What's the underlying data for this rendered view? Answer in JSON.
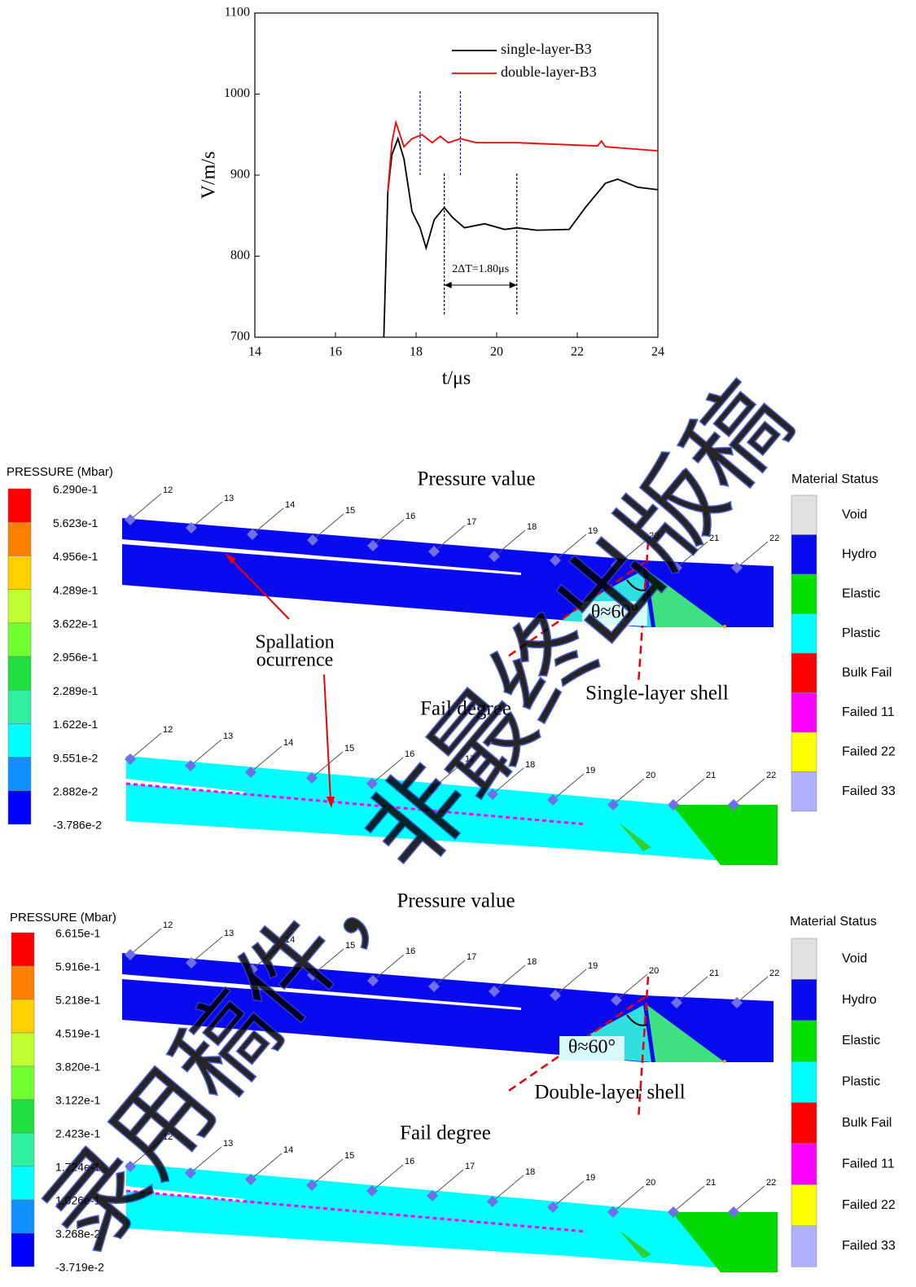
{
  "chart_data": {
    "type": "line",
    "xlabel": "t/μs",
    "ylabel": "V/m/s",
    "xlim": [
      14,
      24
    ],
    "xticks": [
      14,
      16,
      18,
      20,
      22,
      24
    ],
    "ylim": [
      700,
      1100
    ],
    "yticks": [
      700,
      800,
      900,
      1000,
      1100
    ],
    "legend": "upper right",
    "series": [
      {
        "name": "single-layer-B3",
        "color": "#000000",
        "x": [
          17.2,
          17.3,
          17.4,
          17.55,
          17.7,
          17.9,
          18.1,
          18.25,
          18.45,
          18.7,
          18.9,
          19.2,
          19.7,
          20.2,
          20.5,
          21.0,
          21.8,
          22.2,
          22.7,
          23.0,
          23.5,
          24.0
        ],
        "values": [
          700,
          880,
          925,
          945,
          920,
          855,
          835,
          810,
          845,
          860,
          848,
          835,
          840,
          833,
          835,
          832,
          833,
          860,
          890,
          895,
          885,
          882
        ]
      },
      {
        "name": "double-layer-B3",
        "color": "#ff0000",
        "x": [
          17.3,
          17.4,
          17.5,
          17.7,
          17.9,
          18.15,
          18.4,
          18.6,
          18.8,
          19.1,
          19.5,
          20.5,
          22.5,
          22.6,
          22.7,
          24.0
        ],
        "values": [
          880,
          940,
          965,
          935,
          945,
          950,
          940,
          948,
          940,
          945,
          940,
          940,
          936,
          942,
          935,
          930
        ]
      }
    ],
    "vlines": [
      {
        "x": 18.1,
        "color": "#0000ff"
      },
      {
        "x": 19.1,
        "color": "#0000ff"
      },
      {
        "x": 18.7,
        "color": "#000000"
      },
      {
        "x": 20.5,
        "color": "#000000"
      }
    ],
    "annotation": "2ΔT=1.80μs"
  },
  "panels": [
    {
      "pressure_title": "Pressure value",
      "fail_title": "Fail degree",
      "shell_label": "Single-layer shell",
      "angle_label": "θ≈60°",
      "spall_label": [
        "Spallation",
        "ocurrence"
      ],
      "pressure_legend": {
        "title": "PRESSURE (Mbar)",
        "labels": [
          "6.290e-1",
          "5.623e-1",
          "4.956e-1",
          "4.289e-1",
          "3.622e-1",
          "2.956e-1",
          "2.289e-1",
          "1.622e-1",
          "9.551e-2",
          "2.882e-2",
          "-3.786e-2"
        ]
      },
      "nodes": [
        "12",
        "13",
        "14",
        "15",
        "16",
        "17",
        "18",
        "19",
        "20",
        "21",
        "22"
      ]
    },
    {
      "pressure_title": "Pressure value",
      "fail_title": "Fail degree",
      "shell_label": "Double-layer shell",
      "angle_label": "θ≈60°",
      "pressure_legend": {
        "title": "PRESSURE (Mbar)",
        "labels": [
          "6.615e-1",
          "5.916e-1",
          "5.218e-1",
          "4.519e-1",
          "3.820e-1",
          "3.122e-1",
          "2.423e-1",
          "1.724e-1",
          "1.026e-1",
          "3.268e-2",
          "-3.719e-2"
        ]
      },
      "nodes": [
        "12",
        "13",
        "14",
        "15",
        "16",
        "17",
        "18",
        "19",
        "20",
        "21",
        "22"
      ]
    }
  ],
  "pressure_colors": [
    "#ff0000",
    "#ff7f00",
    "#ffd000",
    "#c0ff30",
    "#70ff30",
    "#20e040",
    "#30f0a0",
    "#00ffff",
    "#1090ff",
    "#0000ff"
  ],
  "material_legend": {
    "title": "Material Status",
    "items": [
      {
        "label": "Void",
        "color": "#e0e0e0"
      },
      {
        "label": "Hydro",
        "color": "#0a0aee"
      },
      {
        "label": "Elastic",
        "color": "#00e000"
      },
      {
        "label": "Plastic",
        "color": "#00ffff"
      },
      {
        "label": "Bulk Fail",
        "color": "#ff0000"
      },
      {
        "label": "Failed 11",
        "color": "#ff00ff"
      },
      {
        "label": "Failed 22",
        "color": "#ffff00"
      },
      {
        "label": "Failed 33",
        "color": "#b0b0ff"
      }
    ]
  },
  "watermark": "录用稿件，非最终出版稿"
}
